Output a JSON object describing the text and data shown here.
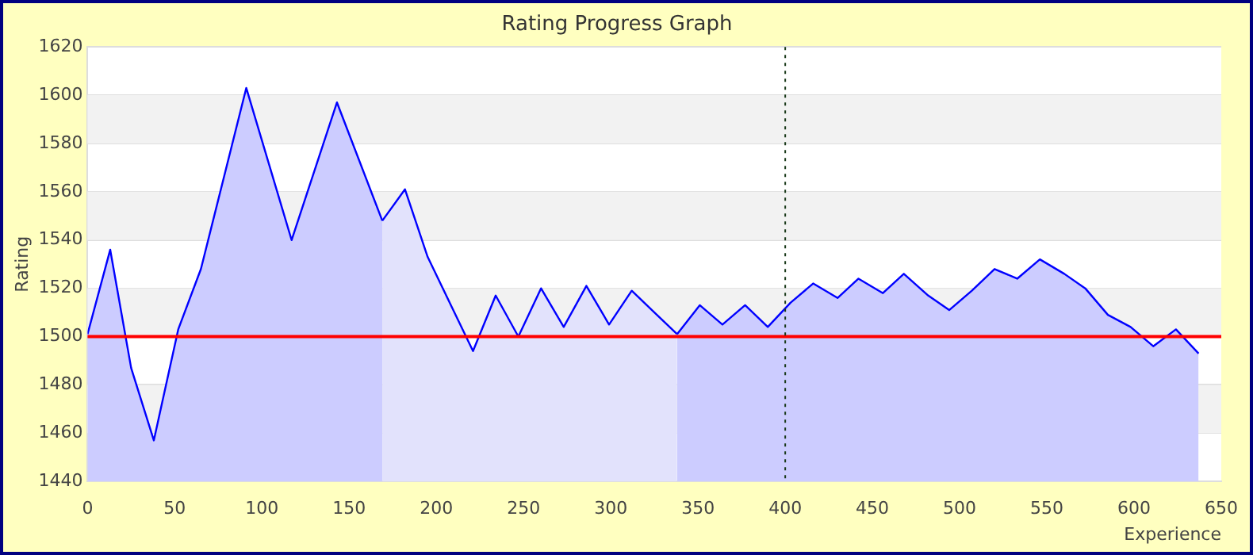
{
  "chart_data": {
    "type": "area",
    "title": "Rating Progress Graph",
    "xlabel": "Experience",
    "ylabel": "Rating",
    "xlim": [
      0,
      650
    ],
    "xticks": [
      0,
      50,
      100,
      150,
      200,
      250,
      300,
      350,
      400,
      450,
      500,
      550,
      600,
      650
    ],
    "ylim": [
      1440,
      1620
    ],
    "yticks": [
      1440,
      1460,
      1480,
      1500,
      1520,
      1540,
      1560,
      1580,
      1600,
      1620
    ],
    "grid": "y",
    "legend": false,
    "series": [
      {
        "color": "#ccccff",
        "x": [
          0,
          13,
          25,
          38,
          52,
          65,
          91,
          117,
          143,
          169
        ],
        "values": [
          1501,
          1536,
          1487,
          1457,
          1503,
          1528,
          1603,
          1540,
          1597,
          1548
        ]
      },
      {
        "color": "#e2e2fc",
        "x": [
          169,
          182,
          195,
          209,
          221,
          234,
          247,
          260,
          273,
          286,
          299,
          312,
          325,
          338
        ],
        "values": [
          1548,
          1561,
          1533,
          1512,
          1494,
          1517,
          1500,
          1520,
          1504,
          1521,
          1505,
          1519,
          1510,
          1501
        ]
      },
      {
        "color": "#ccccff",
        "x": [
          338,
          351,
          364,
          377,
          390,
          403,
          416,
          430,
          442,
          456,
          468,
          482,
          494,
          507,
          520,
          533,
          546,
          560,
          572,
          585,
          598,
          611,
          624,
          637
        ],
        "values": [
          1501,
          1513,
          1505,
          1513,
          1504,
          1514,
          1522,
          1516,
          1524,
          1518,
          1526,
          1517,
          1511,
          1519,
          1528,
          1524,
          1532,
          1526,
          1520,
          1509,
          1504,
          1496,
          1503,
          1493
        ]
      }
    ],
    "ref_lines": [
      {
        "axis": "y",
        "value": 1500,
        "color": "#ff0000",
        "line_style": "solid"
      },
      {
        "axis": "x",
        "value": 400,
        "color": "#1a3a1a",
        "line_style": "dotted"
      }
    ]
  }
}
